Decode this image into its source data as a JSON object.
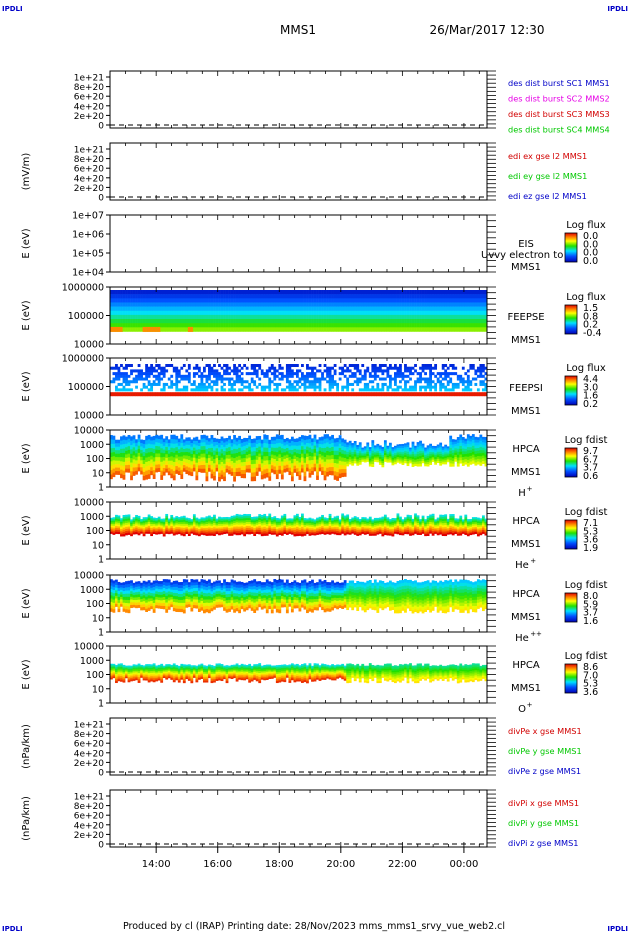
{
  "header": {
    "corner_left_top": "IPDLI",
    "corner_right_top": "IPDLI",
    "spacecraft": "MMS1",
    "datetime": "26/Mar/2017 12:30",
    "corner_left_bottom": "IPDLI",
    "corner_right_bottom": "IPDLI"
  },
  "footer": {
    "text": "Produced by cl (IRAP)   Printing date: 28/Nov/2023   mms_mms1_srvy_vue_web2.cl"
  },
  "colors": {
    "mms1": "#0000c8",
    "mms2": "#e600e6",
    "mms3": "#d20000",
    "mms4": "#00c800",
    "x": "#d20000",
    "y": "#00c800",
    "z": "#0000c8"
  },
  "chart_data": {
    "type": "heatmap",
    "x_ticks": [
      "14:00",
      "16:00",
      "18:00",
      "20:00",
      "22:00",
      "00:00"
    ],
    "x_range_hours": [
      12.5,
      24.75
    ],
    "panels": [
      {
        "id": "des-dist",
        "type": "line",
        "ylabel": "",
        "yticks": [
          "1e+21",
          "8e+20",
          "6e+20",
          "4e+20",
          "2e+20",
          "0"
        ],
        "legend": [
          {
            "text": "des dist burst SC1 MMS1",
            "color": "#0000c8"
          },
          {
            "text": "des dist burst SC2 MMS2",
            "color": "#e600e6"
          },
          {
            "text": "des dist burst SC3 MMS3",
            "color": "#d20000"
          },
          {
            "text": "des dist burst SC4 MMS4",
            "color": "#00c800"
          }
        ]
      },
      {
        "id": "edi",
        "type": "line",
        "ylabel": "(mV/m)",
        "yticks": [
          "1e+21",
          "8e+20",
          "6e+20",
          "4e+20",
          "2e+20",
          "0"
        ],
        "legend": [
          {
            "text": "edi ex gse l2 MMS1",
            "color": "#d20000"
          },
          {
            "text": "edi ey gse l2 MMS1",
            "color": "#00c800"
          },
          {
            "text": "edi ez gse l2 MMS1",
            "color": "#0000c8"
          }
        ]
      },
      {
        "id": "eis",
        "type": "spectrogram",
        "ylabel": "E (eV)",
        "yticks": [
          "1e+07",
          "1e+06",
          "1e+05",
          "1e+04"
        ],
        "instrument": "EIS",
        "sc": "MMS1",
        "overlay": "Uvvy electron to",
        "colorbar_title": "Log flux",
        "colorbar_ticks": [
          "0.0",
          "0.0",
          "0.0",
          "0.0"
        ]
      },
      {
        "id": "feepse",
        "type": "spectrogram",
        "ylabel": "E (eV)",
        "yticks": [
          "1000000",
          "100000",
          "10000"
        ],
        "instrument": "FEEPSE",
        "sc": "MMS1",
        "colorbar_title": "Log flux",
        "colorbar_ticks": [
          "1.5",
          "0.8",
          "0.2",
          "-0.4"
        ]
      },
      {
        "id": "feepsi",
        "type": "spectrogram",
        "ylabel": "E (eV)",
        "yticks": [
          "1000000",
          "100000",
          "10000"
        ],
        "instrument": "FEEPSI",
        "sc": "MMS1",
        "colorbar_title": "Log flux",
        "colorbar_ticks": [
          "4.4",
          "3.0",
          "1.6",
          "0.2"
        ]
      },
      {
        "id": "hpca-h",
        "type": "spectrogram",
        "ylabel": "E (eV)",
        "yticks": [
          "10000",
          "1000",
          "100",
          "10",
          "1"
        ],
        "instrument": "HPCA",
        "sc": "MMS1",
        "species": "H",
        "charge": "+",
        "colorbar_title": "Log fdist",
        "colorbar_ticks": [
          "9.7",
          "6.7",
          "3.7",
          "0.6"
        ]
      },
      {
        "id": "hpca-he",
        "type": "spectrogram",
        "ylabel": "E (eV)",
        "yticks": [
          "10000",
          "1000",
          "100",
          "10",
          "1"
        ],
        "instrument": "HPCA",
        "sc": "MMS1",
        "species": "He",
        "charge": "+",
        "colorbar_title": "Log fdist",
        "colorbar_ticks": [
          "7.1",
          "5.3",
          "3.6",
          "1.9"
        ]
      },
      {
        "id": "hpca-he2",
        "type": "spectrogram",
        "ylabel": "E (eV)",
        "yticks": [
          "10000",
          "1000",
          "100",
          "10",
          "1"
        ],
        "instrument": "HPCA",
        "sc": "MMS1",
        "species": "He",
        "charge": "++",
        "colorbar_title": "Log fdist",
        "colorbar_ticks": [
          "8.0",
          "5.9",
          "3.7",
          "1.6"
        ]
      },
      {
        "id": "hpca-o",
        "type": "spectrogram",
        "ylabel": "E (eV)",
        "yticks": [
          "10000",
          "1000",
          "100",
          "10",
          "1"
        ],
        "instrument": "HPCA",
        "sc": "MMS1",
        "species": "O",
        "charge": "+",
        "colorbar_title": "Log fdist",
        "colorbar_ticks": [
          "8.6",
          "7.0",
          "5.3",
          "3.6"
        ]
      },
      {
        "id": "divpe",
        "type": "line",
        "ylabel": "(nPa/km)",
        "yticks": [
          "1e+21",
          "8e+20",
          "6e+20",
          "4e+20",
          "2e+20",
          "0"
        ],
        "legend": [
          {
            "text": "divPe x gse MMS1",
            "color": "#d20000"
          },
          {
            "text": "divPe y gse MMS1",
            "color": "#00c800"
          },
          {
            "text": "divPe z gse MMS1",
            "color": "#0000c8"
          }
        ]
      },
      {
        "id": "divpi",
        "type": "line",
        "ylabel": "(nPa/km)",
        "yticks": [
          "1e+21",
          "8e+20",
          "6e+20",
          "4e+20",
          "2e+20",
          "0"
        ],
        "legend": [
          {
            "text": "divPi x gse MMS1",
            "color": "#d20000"
          },
          {
            "text": "divPi y gse MMS1",
            "color": "#00c800"
          },
          {
            "text": "divPi z gse MMS1",
            "color": "#0000c8"
          }
        ]
      }
    ]
  }
}
